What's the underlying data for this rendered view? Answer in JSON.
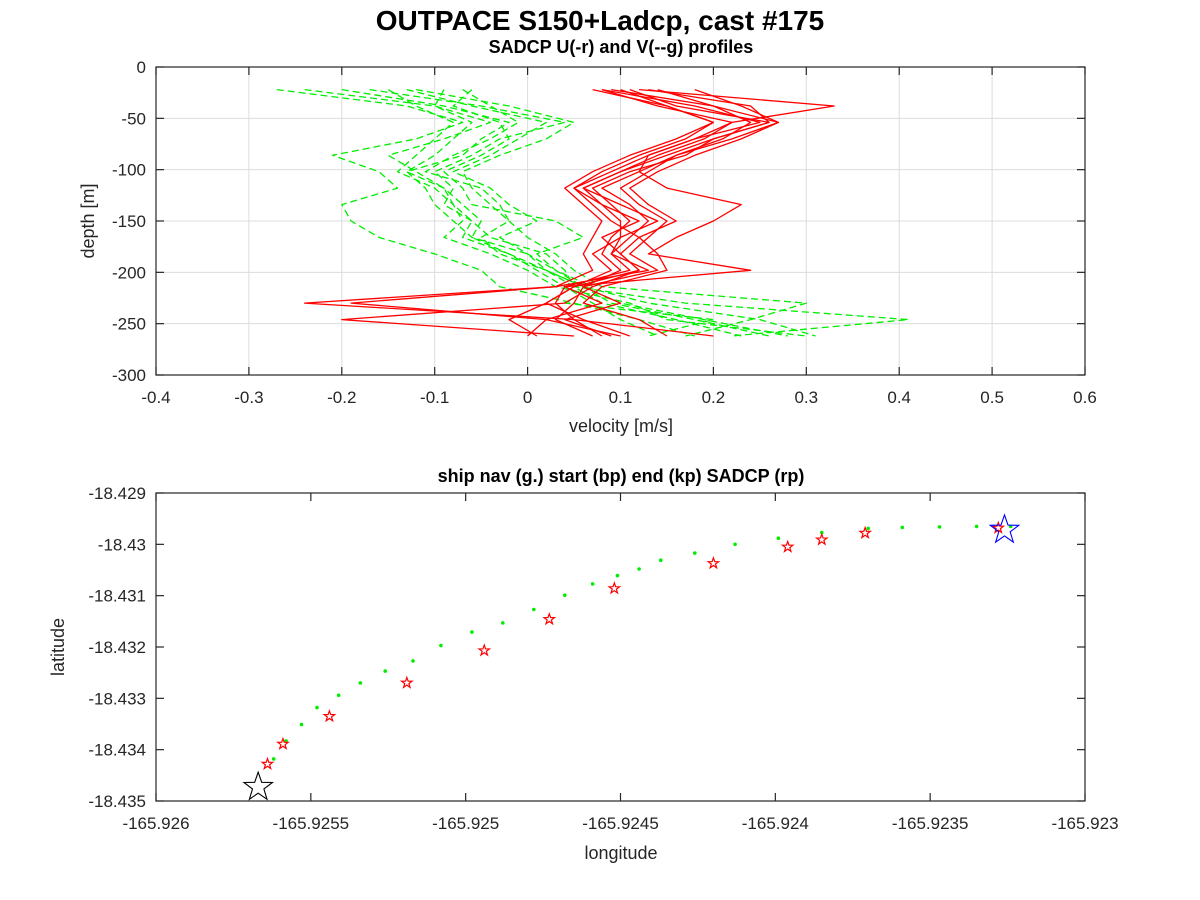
{
  "figure": {
    "title": "OUTPACE S150+Ladcp, cast #175"
  },
  "chart_data": [
    {
      "type": "line",
      "title": "SADCP U(-r) and V(--g) profiles",
      "xlabel": "velocity [m/s]",
      "ylabel": "depth [m]",
      "xlim": [
        -0.4,
        0.6
      ],
      "ylim": [
        -300,
        0
      ],
      "xticks": [
        -0.4,
        -0.3,
        -0.2,
        -0.1,
        0,
        0.1,
        0.2,
        0.3,
        0.4,
        0.5,
        0.6
      ],
      "yticks": [
        0,
        -50,
        -100,
        -150,
        -200,
        -250,
        -300
      ],
      "xtick_labels": [
        "-0.4",
        "-0.3",
        "-0.2",
        "-0.1",
        "0",
        "0.1",
        "0.2",
        "0.3",
        "0.4",
        "0.5",
        "0.6"
      ],
      "ytick_labels": [
        "0",
        "-50",
        "-100",
        "-150",
        "-200",
        "-250",
        "-300"
      ],
      "grid": true,
      "series_styles": {
        "U": {
          "color": "#ff0000",
          "dash": "solid"
        },
        "V": {
          "color": "#00ee00",
          "dash": "dashed"
        }
      },
      "depths": [
        -22,
        -38,
        -54,
        -70,
        -86,
        -102,
        -118,
        -134,
        -150,
        -166,
        -182,
        -198,
        -214,
        -230,
        -246,
        -262
      ],
      "series": [
        {
          "component": "U",
          "values": [
            0.11,
            0.16,
            0.26,
            0.2,
            0.15,
            0.1,
            0.06,
            0.1,
            0.14,
            0.1,
            0.07,
            0.09,
            0.05,
            0.02,
            -0.02,
            0.01
          ]
        },
        {
          "component": "U",
          "values": [
            0.08,
            0.18,
            0.25,
            0.18,
            0.13,
            0.09,
            0.05,
            0.08,
            0.12,
            0.08,
            0.1,
            0.12,
            0.07,
            0.04,
            -0.2,
            0.05
          ]
        },
        {
          "component": "U",
          "values": [
            0.09,
            0.2,
            0.27,
            0.22,
            0.16,
            0.12,
            0.08,
            0.11,
            0.13,
            0.11,
            0.09,
            0.11,
            0.04,
            0.08,
            0.02,
            0.1
          ]
        },
        {
          "component": "U",
          "values": [
            0.13,
            0.24,
            0.26,
            0.2,
            0.17,
            0.11,
            0.07,
            0.09,
            0.11,
            0.09,
            0.08,
            0.1,
            0.06,
            0.05,
            0.03,
            0.07
          ]
        },
        {
          "component": "U",
          "values": [
            0.12,
            0.33,
            0.22,
            0.19,
            0.14,
            0.1,
            0.06,
            0.08,
            0.1,
            0.1,
            0.09,
            0.13,
            0.03,
            -0.24,
            0.05,
            0.2
          ]
        },
        {
          "component": "U",
          "values": [
            0.07,
            0.15,
            0.2,
            0.17,
            0.12,
            0.08,
            0.05,
            0.07,
            0.09,
            0.12,
            0.14,
            0.15,
            0.08,
            0.06,
            0.12,
            0.15
          ]
        },
        {
          "component": "U",
          "values": [
            0.08,
            0.14,
            0.22,
            0.18,
            0.13,
            0.12,
            0.15,
            0.23,
            0.2,
            0.16,
            0.13,
            0.24,
            0.04,
            0.03,
            0.05,
            0.08
          ]
        },
        {
          "component": "U",
          "values": [
            0.14,
            0.2,
            0.24,
            0.21,
            0.16,
            0.13,
            0.1,
            0.12,
            0.15,
            0.13,
            0.11,
            0.14,
            0.06,
            0.1,
            0.04,
            0.09
          ]
        },
        {
          "component": "U",
          "values": [
            0.1,
            0.15,
            0.2,
            0.16,
            0.11,
            0.07,
            0.04,
            0.06,
            0.08,
            0.07,
            0.06,
            0.07,
            0.03,
            -0.19,
            0.02,
            0.0
          ]
        },
        {
          "component": "U",
          "values": [
            0.18,
            0.23,
            0.27,
            0.23,
            0.18,
            0.14,
            0.11,
            0.13,
            0.16,
            0.12,
            0.1,
            0.12,
            0.05,
            0.02,
            0.06,
            0.11
          ]
        },
        {
          "component": "V",
          "values": [
            -0.27,
            -0.13,
            -0.07,
            -0.12,
            -0.21,
            -0.16,
            -0.14,
            -0.2,
            -0.19,
            -0.16,
            -0.1,
            -0.05,
            -0.03,
            0.05,
            0.12,
            0.18
          ]
        },
        {
          "component": "V",
          "values": [
            -0.2,
            -0.09,
            -0.02,
            -0.05,
            -0.07,
            -0.13,
            -0.11,
            -0.1,
            -0.08,
            -0.06,
            0.0,
            0.02,
            0.06,
            0.13,
            0.25,
            0.31
          ]
        },
        {
          "component": "V",
          "values": [
            -0.17,
            -0.05,
            0.04,
            -0.03,
            -0.06,
            -0.1,
            -0.08,
            -0.09,
            -0.06,
            -0.04,
            0.02,
            0.04,
            0.05,
            0.17,
            0.41,
            0.22
          ]
        },
        {
          "component": "V",
          "values": [
            -0.12,
            -0.02,
            0.05,
            0.02,
            -0.03,
            -0.07,
            -0.06,
            -0.04,
            -0.02,
            0.0,
            0.03,
            0.05,
            0.08,
            0.3,
            0.24,
            0.17
          ]
        },
        {
          "component": "V",
          "values": [
            -0.09,
            -0.1,
            -0.06,
            -0.08,
            -0.1,
            -0.13,
            -0.09,
            -0.07,
            -0.05,
            -0.06,
            -0.02,
            0.01,
            0.04,
            0.07,
            0.1,
            0.14
          ]
        },
        {
          "component": "V",
          "values": [
            -0.07,
            -0.04,
            -0.01,
            -0.04,
            -0.08,
            -0.11,
            -0.05,
            -0.03,
            -0.02,
            -0.05,
            -0.03,
            0.02,
            0.06,
            0.09,
            0.18,
            0.26
          ]
        },
        {
          "component": "V",
          "values": [
            -0.15,
            -0.12,
            -0.08,
            -0.1,
            -0.12,
            -0.14,
            -0.1,
            -0.08,
            -0.07,
            -0.09,
            -0.04,
            0.0,
            0.03,
            0.11,
            0.15,
            0.3
          ]
        },
        {
          "component": "V",
          "values": [
            -0.06,
            -0.08,
            -0.03,
            -0.02,
            -0.05,
            -0.09,
            -0.07,
            -0.06,
            0.03,
            0.06,
            0.01,
            0.03,
            0.07,
            0.04,
            0.2,
            0.13
          ]
        },
        {
          "component": "V",
          "values": [
            -0.24,
            -0.1,
            -0.04,
            -0.09,
            -0.15,
            -0.12,
            -0.09,
            -0.08,
            -0.06,
            -0.07,
            -0.02,
            0.02,
            0.05,
            0.08,
            0.16,
            0.23
          ]
        },
        {
          "component": "V",
          "values": [
            -0.13,
            -0.06,
            0.02,
            -0.01,
            -0.04,
            -0.08,
            -0.04,
            -0.02,
            0.01,
            -0.03,
            0.0,
            0.03,
            0.06,
            0.1,
            0.19,
            0.28
          ]
        }
      ]
    },
    {
      "type": "scatter",
      "title": "ship nav (g.) start (bp) end (kp) SADCP (rp)",
      "xlabel": "longitude",
      "ylabel": "latitude",
      "xlim": [
        -165.926,
        -165.923
      ],
      "ylim": [
        -18.435,
        -18.429
      ],
      "xticks": [
        -165.926,
        -165.9255,
        -165.925,
        -165.9245,
        -165.924,
        -165.9235,
        -165.923
      ],
      "yticks": [
        -18.429,
        -18.43,
        -18.431,
        -18.432,
        -18.433,
        -18.434,
        -18.435
      ],
      "xtick_labels": [
        "-165.926",
        "-165.9255",
        "-165.925",
        "-165.9245",
        "-165.924",
        "-165.9235",
        "-165.923"
      ],
      "ytick_labels": [
        "-18.429",
        "-18.43",
        "-18.431",
        "-18.432",
        "-18.433",
        "-18.434",
        "-18.435"
      ],
      "grid": false,
      "series": [
        {
          "role": "ship nav",
          "color": "#00ee00",
          "marker": "dot",
          "x": [
            -165.92562,
            -165.92558,
            -165.92553,
            -165.92548,
            -165.92541,
            -165.92534,
            -165.92526,
            -165.92517,
            -165.92508,
            -165.92498,
            -165.92488,
            -165.92478,
            -165.92468,
            -165.92459,
            -165.92451,
            -165.92444,
            -165.92437,
            -165.92426,
            -165.92413,
            -165.92399,
            -165.92385,
            -165.9237,
            -165.92359,
            -165.92347,
            -165.92335,
            -165.92324
          ],
          "y": [
            -18.43418,
            -18.43383,
            -18.43351,
            -18.43318,
            -18.43294,
            -18.4327,
            -18.43247,
            -18.43227,
            -18.43197,
            -18.43171,
            -18.43153,
            -18.43127,
            -18.43099,
            -18.43077,
            -18.43061,
            -18.43048,
            -18.43031,
            -18.43017,
            -18.43,
            -18.42988,
            -18.42977,
            -18.42969,
            -18.42967,
            -18.42966,
            -18.42965,
            -18.42965
          ]
        },
        {
          "role": "SADCP",
          "color": "#ff0000",
          "marker": "pentagram",
          "x": [
            -165.92564,
            -165.92559,
            -165.92544,
            -165.92519,
            -165.92494,
            -165.92473,
            -165.92452,
            -165.9242,
            -165.92396,
            -165.92385,
            -165.92371,
            -165.92328
          ],
          "y": [
            -18.43428,
            -18.43389,
            -18.43335,
            -18.4327,
            -18.43207,
            -18.43146,
            -18.43086,
            -18.43037,
            -18.43005,
            -18.42991,
            -18.42978,
            -18.42968
          ]
        },
        {
          "role": "start",
          "color": "#0000ff",
          "marker": "pentagram-large",
          "x": [
            -165.92326
          ],
          "y": [
            -18.42972
          ]
        },
        {
          "role": "end",
          "color": "#000000",
          "marker": "pentagram-large",
          "x": [
            -165.92567
          ],
          "y": [
            -18.43473
          ]
        }
      ]
    }
  ]
}
